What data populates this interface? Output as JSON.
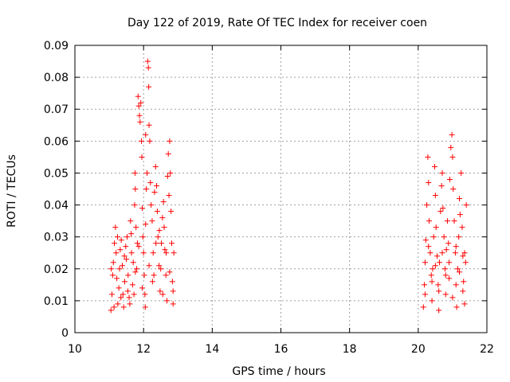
{
  "chart_data": {
    "type": "scatter",
    "title": "Day 122 of 2019, Rate Of TEC Index for receiver coen",
    "xlabel": "GPS time / hours",
    "ylabel": "ROTI / TECUs",
    "xlim": [
      10,
      22
    ],
    "ylim": [
      0,
      0.09
    ],
    "x_ticks": [
      10,
      12,
      14,
      16,
      18,
      20,
      22
    ],
    "x_tick_labels": [
      "10",
      "12",
      "14",
      "16",
      "18",
      "20",
      "22"
    ],
    "y_ticks": [
      0,
      0.01,
      0.02,
      0.03,
      0.04,
      0.05,
      0.06,
      0.07,
      0.08,
      0.09
    ],
    "y_tick_labels": [
      "0",
      "0.01",
      "0.02",
      "0.03",
      "0.04",
      "0.05",
      "0.06",
      "0.07",
      "0.08",
      "0.09"
    ],
    "grid": true,
    "marker": "+",
    "color": "#ff0000",
    "series": [
      {
        "name": "ROTI",
        "points": [
          [
            11.05,
            0.007
          ],
          [
            11.08,
            0.012
          ],
          [
            11.1,
            0.018
          ],
          [
            11.12,
            0.022
          ],
          [
            11.15,
            0.028
          ],
          [
            11.18,
            0.033
          ],
          [
            11.2,
            0.025
          ],
          [
            11.22,
            0.017
          ],
          [
            11.25,
            0.009
          ],
          [
            11.28,
            0.014
          ],
          [
            11.3,
            0.02
          ],
          [
            11.32,
            0.026
          ],
          [
            11.35,
            0.029
          ],
          [
            11.38,
            0.021
          ],
          [
            11.4,
            0.012
          ],
          [
            11.42,
            0.008
          ],
          [
            11.45,
            0.016
          ],
          [
            11.48,
            0.027
          ],
          [
            11.5,
            0.023
          ],
          [
            11.52,
            0.03
          ],
          [
            11.55,
            0.018
          ],
          [
            11.58,
            0.011
          ],
          [
            11.6,
            0.009
          ],
          [
            11.62,
            0.035
          ],
          [
            11.65,
            0.025
          ],
          [
            11.68,
            0.015
          ],
          [
            11.7,
            0.022
          ],
          [
            11.72,
            0.012
          ],
          [
            11.74,
            0.04
          ],
          [
            11.75,
            0.05
          ],
          [
            11.76,
            0.045
          ],
          [
            11.78,
            0.033
          ],
          [
            11.8,
            0.02
          ],
          [
            11.82,
            0.028
          ],
          [
            11.84,
            0.074
          ],
          [
            11.86,
            0.071
          ],
          [
            11.88,
            0.068
          ],
          [
            11.9,
            0.066
          ],
          [
            11.92,
            0.072
          ],
          [
            11.94,
            0.06
          ],
          [
            11.95,
            0.055
          ],
          [
            11.96,
            0.039
          ],
          [
            11.98,
            0.03
          ],
          [
            12.0,
            0.025
          ],
          [
            12.02,
            0.018
          ],
          [
            12.04,
            0.012
          ],
          [
            12.05,
            0.008
          ],
          [
            12.06,
            0.062
          ],
          [
            12.08,
            0.045
          ],
          [
            12.1,
            0.05
          ],
          [
            12.12,
            0.085
          ],
          [
            12.14,
            0.083
          ],
          [
            12.15,
            0.077
          ],
          [
            12.16,
            0.065
          ],
          [
            12.18,
            0.06
          ],
          [
            12.2,
            0.047
          ],
          [
            12.22,
            0.04
          ],
          [
            12.25,
            0.035
          ],
          [
            12.28,
            0.025
          ],
          [
            12.3,
            0.018
          ],
          [
            12.32,
            0.044
          ],
          [
            12.35,
            0.052
          ],
          [
            12.38,
            0.046
          ],
          [
            12.4,
            0.038
          ],
          [
            12.42,
            0.03
          ],
          [
            12.45,
            0.021
          ],
          [
            12.48,
            0.013
          ],
          [
            12.5,
            0.02
          ],
          [
            12.52,
            0.028
          ],
          [
            12.55,
            0.036
          ],
          [
            12.58,
            0.041
          ],
          [
            12.6,
            0.033
          ],
          [
            12.62,
            0.026
          ],
          [
            12.65,
            0.018
          ],
          [
            12.68,
            0.01
          ],
          [
            12.7,
            0.049
          ],
          [
            12.72,
            0.056
          ],
          [
            12.74,
            0.043
          ],
          [
            12.76,
            0.06
          ],
          [
            12.78,
            0.05
          ],
          [
            12.8,
            0.038
          ],
          [
            12.82,
            0.028
          ],
          [
            12.84,
            0.016
          ],
          [
            12.86,
            0.009
          ],
          [
            12.88,
            0.025
          ],
          [
            11.06,
            0.02
          ],
          [
            11.14,
            0.008
          ],
          [
            11.24,
            0.03
          ],
          [
            11.34,
            0.011
          ],
          [
            11.44,
            0.024
          ],
          [
            11.54,
            0.013
          ],
          [
            11.64,
            0.031
          ],
          [
            11.76,
            0.019
          ],
          [
            11.86,
            0.027
          ],
          [
            11.96,
            0.014
          ],
          [
            12.06,
            0.034
          ],
          [
            12.16,
            0.021
          ],
          [
            12.26,
            0.016
          ],
          [
            12.36,
            0.028
          ],
          [
            12.46,
            0.032
          ],
          [
            12.56,
            0.012
          ],
          [
            12.66,
            0.025
          ],
          [
            12.76,
            0.019
          ],
          [
            12.86,
            0.013
          ],
          [
            20.15,
            0.008
          ],
          [
            20.18,
            0.015
          ],
          [
            20.2,
            0.022
          ],
          [
            20.22,
            0.029
          ],
          [
            20.25,
            0.04
          ],
          [
            20.28,
            0.055
          ],
          [
            20.3,
            0.047
          ],
          [
            20.32,
            0.035
          ],
          [
            20.35,
            0.025
          ],
          [
            20.38,
            0.018
          ],
          [
            20.4,
            0.01
          ],
          [
            20.42,
            0.02
          ],
          [
            20.45,
            0.03
          ],
          [
            20.48,
            0.052
          ],
          [
            20.5,
            0.043
          ],
          [
            20.52,
            0.033
          ],
          [
            20.55,
            0.024
          ],
          [
            20.58,
            0.015
          ],
          [
            20.6,
            0.007
          ],
          [
            20.62,
            0.022
          ],
          [
            20.65,
            0.038
          ],
          [
            20.68,
            0.046
          ],
          [
            20.7,
            0.05
          ],
          [
            20.72,
            0.039
          ],
          [
            20.75,
            0.03
          ],
          [
            20.78,
            0.02
          ],
          [
            20.8,
            0.012
          ],
          [
            20.82,
            0.026
          ],
          [
            20.85,
            0.035
          ],
          [
            20.88,
            0.028
          ],
          [
            20.9,
            0.017
          ],
          [
            20.92,
            0.048
          ],
          [
            20.95,
            0.058
          ],
          [
            20.98,
            0.062
          ],
          [
            21.0,
            0.055
          ],
          [
            21.02,
            0.045
          ],
          [
            21.05,
            0.035
          ],
          [
            21.08,
            0.025
          ],
          [
            21.1,
            0.015
          ],
          [
            21.12,
            0.008
          ],
          [
            21.15,
            0.02
          ],
          [
            21.18,
            0.03
          ],
          [
            21.2,
            0.042
          ],
          [
            21.22,
            0.037
          ],
          [
            21.25,
            0.05
          ],
          [
            21.28,
            0.033
          ],
          [
            21.3,
            0.024
          ],
          [
            21.32,
            0.016
          ],
          [
            21.35,
            0.009
          ],
          [
            21.38,
            0.022
          ],
          [
            21.4,
            0.04
          ],
          [
            20.2,
            0.012
          ],
          [
            20.3,
            0.027
          ],
          [
            20.4,
            0.016
          ],
          [
            20.5,
            0.021
          ],
          [
            20.6,
            0.013
          ],
          [
            20.7,
            0.025
          ],
          [
            20.8,
            0.018
          ],
          [
            20.9,
            0.022
          ],
          [
            21.0,
            0.011
          ],
          [
            21.1,
            0.027
          ],
          [
            21.2,
            0.019
          ],
          [
            21.3,
            0.013
          ],
          [
            21.35,
            0.025
          ]
        ]
      }
    ]
  }
}
